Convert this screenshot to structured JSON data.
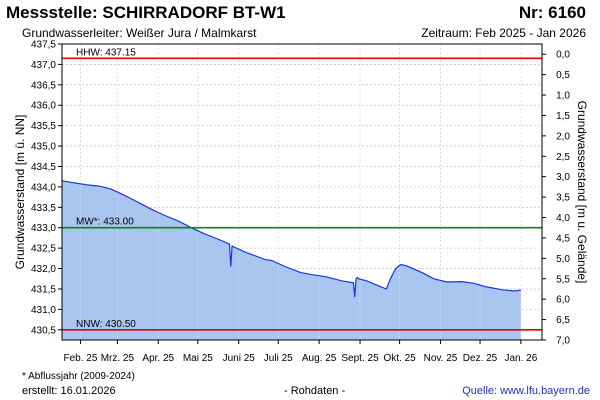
{
  "header": {
    "title": "Messstelle: SCHIRRADORF BT-W1",
    "nr": "Nr: 6160",
    "aquifer": "Grundwasserleiter:   Weißer Jura / Malmkarst",
    "period": "Zeitraum: Feb 2025 - Jan 2026"
  },
  "footer": {
    "footnote": "* Abflussjahr (2009-2024)",
    "created": "erstellt:  16.01.2026",
    "raw": "- Rohdaten -",
    "source": "Quelle:  www.lfu.bayern.de"
  },
  "colors": {
    "fill": "#a9c6f0",
    "line": "#1a35d8",
    "hhw": "#e80000",
    "nnw": "#e80000",
    "mw": "#008a00",
    "grid": "#c8c8c8"
  },
  "chart_data": {
    "type": "area",
    "xlabel": "",
    "ylabel": "Grundwasserstand [m ü. NN]",
    "ylabel_right": "Grundwasserstand [m u. Gelände]",
    "ylim": [
      430.25,
      437.5
    ],
    "yticks": [
      "430,5",
      "431,0",
      "431,5",
      "432,0",
      "432,5",
      "433,0",
      "433,5",
      "434,0",
      "434,5",
      "435,0",
      "435,5",
      "436,0",
      "436,5",
      "437,0",
      "437,5"
    ],
    "yticks_right": [
      "7,0",
      "6,5",
      "6,0",
      "5,5",
      "5,0",
      "4,5",
      "4,0",
      "3,5",
      "3,0",
      "2,5",
      "2,0",
      "1,5",
      "1,0",
      "0,5",
      "0,0"
    ],
    "xlim": [
      "2025-02-01",
      "2026-01-31"
    ],
    "xticks": [
      {
        "label": "Feb. 25",
        "date": "2025-02-15"
      },
      {
        "label": "Mrz. 25",
        "date": "2025-03-15"
      },
      {
        "label": "Apr. 25",
        "date": "2025-04-15"
      },
      {
        "label": "Mai 25",
        "date": "2025-05-15"
      },
      {
        "label": "Juni 25",
        "date": "2025-06-15"
      },
      {
        "label": "Juli 25",
        "date": "2025-07-15"
      },
      {
        "label": "Aug. 25",
        "date": "2025-08-15"
      },
      {
        "label": "Sept. 25",
        "date": "2025-09-15"
      },
      {
        "label": "Okt. 25",
        "date": "2025-10-15"
      },
      {
        "label": "Nov. 25",
        "date": "2025-11-15"
      },
      {
        "label": "Dez. 25",
        "date": "2025-12-15"
      },
      {
        "label": "Jan. 26",
        "date": "2026-01-15"
      }
    ],
    "reference_lines": [
      {
        "label": "HHW: 437.15",
        "value": 437.15,
        "color": "#e80000"
      },
      {
        "label": "MW*: 433.00",
        "value": 433.0,
        "color": "#008a00"
      },
      {
        "label": "NNW: 430.50",
        "value": 430.5,
        "color": "#e80000"
      }
    ],
    "series": [
      {
        "x": [
          "2025-02-01",
          "2025-02-10",
          "2025-02-20",
          "2025-03-01",
          "2025-03-10",
          "2025-03-20",
          "2025-04-01",
          "2025-04-10",
          "2025-04-20",
          "2025-05-01",
          "2025-05-10",
          "2025-05-20",
          "2025-06-01",
          "2025-06-08",
          "2025-06-09",
          "2025-06-10",
          "2025-06-20",
          "2025-07-01",
          "2025-07-05",
          "2025-07-10",
          "2025-07-20",
          "2025-08-01",
          "2025-08-10",
          "2025-08-20",
          "2025-09-01",
          "2025-09-10",
          "2025-09-11",
          "2025-09-12",
          "2025-09-13",
          "2025-09-14",
          "2025-09-20",
          "2025-10-01",
          "2025-10-05",
          "2025-10-08",
          "2025-10-12",
          "2025-10-16",
          "2025-10-20",
          "2025-11-01",
          "2025-11-10",
          "2025-11-20",
          "2025-12-01",
          "2025-12-10",
          "2025-12-20",
          "2026-01-01",
          "2026-01-10",
          "2026-01-15"
        ],
        "values": [
          434.15,
          434.1,
          434.05,
          434.02,
          433.95,
          433.8,
          433.6,
          433.45,
          433.3,
          433.15,
          433.0,
          432.85,
          432.7,
          432.6,
          432.05,
          432.55,
          432.4,
          432.27,
          432.22,
          432.2,
          432.05,
          431.9,
          431.85,
          431.8,
          431.7,
          431.65,
          431.3,
          431.75,
          431.78,
          431.75,
          431.7,
          431.55,
          431.5,
          431.75,
          432.0,
          432.1,
          432.07,
          431.9,
          431.75,
          431.67,
          431.68,
          431.64,
          431.55,
          431.48,
          431.45,
          431.47
        ]
      }
    ]
  }
}
